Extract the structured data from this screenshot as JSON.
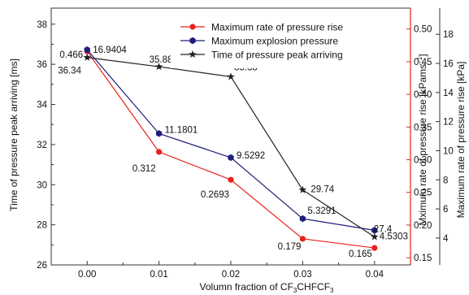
{
  "chart_data": {
    "type": "line",
    "x": [
      0.0,
      0.01,
      0.02,
      0.03,
      0.04
    ],
    "x_tick_labels": [
      "0.00",
      "0.01",
      "0.02",
      "0.03",
      "0.04"
    ],
    "xlim": [
      -0.005,
      0.045
    ],
    "xlabel_main": "Volumn fraction of CF",
    "xlabel_sub1": "3",
    "xlabel_mid": "CHFCF",
    "xlabel_sub2": "3",
    "axes": {
      "left": {
        "label": "Time of pressure peak arriving [ms]",
        "ylim": [
          26,
          38.8
        ],
        "ticks": [
          26,
          28,
          30,
          32,
          34,
          36,
          38
        ],
        "color": "#000000"
      },
      "right1": {
        "label": "Mximum rate of pressure rise [kPams",
        "label_sup": "−1",
        "label_end": "]",
        "ylim": [
          0.139,
          0.532
        ],
        "ticks": [
          0.15,
          0.2,
          0.25,
          0.3,
          0.35,
          0.4,
          0.45,
          0.5
        ],
        "tick_labels": [
          "0.15",
          "0.20",
          "0.25",
          "0.30",
          "0.35",
          "0.40",
          "0.45",
          "0.50"
        ],
        "color": "#e8211c"
      },
      "right2": {
        "label": "Maximum rate of pressure rise [kPa]",
        "ylim": [
          2.15,
          19.8
        ],
        "ticks": [
          4,
          6,
          8,
          10,
          12,
          14,
          16,
          18
        ],
        "color": "#000000"
      }
    },
    "series": [
      {
        "name": "Maximum rate of pressure rise",
        "axis": "right1",
        "color": "#e8211c",
        "marker": "circle",
        "values": [
          0.466,
          0.312,
          0.2693,
          0.179,
          0.165
        ],
        "labels": [
          "0.466",
          "0.312",
          "0.2693",
          "0.179",
          "0.165"
        ]
      },
      {
        "name": "Maximum explosion pressure",
        "axis": "right2",
        "color": "#1f1f7a",
        "marker": "hexagon",
        "values": [
          16.9404,
          11.1801,
          9.5292,
          5.3291,
          4.5303
        ],
        "labels": [
          "16.9404",
          "11.1801",
          "9.5292",
          "5.3291",
          "4.5303"
        ]
      },
      {
        "name": "Time of pressure peak arriving",
        "axis": "left",
        "color": "#222222",
        "marker": "star",
        "values": [
          36.34,
          35.88,
          35.38,
          29.74,
          27.4
        ],
        "labels": [
          "36.34",
          "35.88",
          "35.38",
          "29.74",
          "27.4"
        ]
      }
    ],
    "legend_position": "top-right",
    "grid": false
  }
}
